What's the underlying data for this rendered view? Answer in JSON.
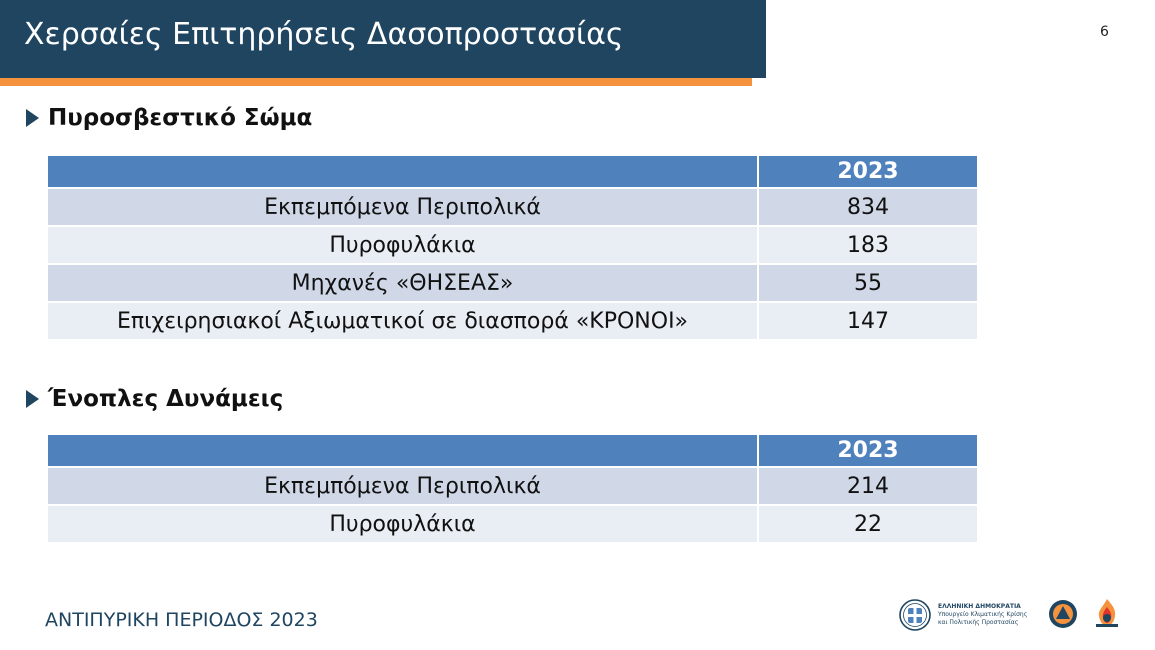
{
  "slide": {
    "title": "Χερσαίες Επιτηρήσεις Δασοπροστασίας",
    "page_number": "6",
    "footer": "ΑΝΤΙΠΥΡΙΚΗ ΠΕΡΙΟΔΟΣ 2023"
  },
  "sections": [
    {
      "heading": "Πυροσβεστικό Σώμα",
      "table": {
        "headers": [
          "",
          "2023"
        ],
        "rows": [
          [
            "Εκπεμπόμενα Περιπολικά",
            "834"
          ],
          [
            "Πυροφυλάκια",
            "183"
          ],
          [
            "Μηχανές «ΘΗΣΕΑΣ»",
            "55"
          ],
          [
            "Επιχειρησιακοί Αξιωματικοί σε διασπορά «ΚΡΟΝΟΙ»",
            "147"
          ]
        ]
      }
    },
    {
      "heading": "Ένοπλες Δυνάμεις",
      "table": {
        "headers": [
          "",
          "2023"
        ],
        "rows": [
          [
            "Εκπεμπόμενα Περιπολικά",
            "214"
          ],
          [
            "Πυροφυλάκια",
            "22"
          ]
        ]
      }
    }
  ],
  "logos": {
    "ministry_line1": "ΕΛΛΗΝΙΚΗ ΔΗΜΟΚΡΑΤΙΑ",
    "ministry_line2": "Υπουργείο Κλιματικής Κρίσης",
    "ministry_line3": "και Πολιτικής Προστασίας",
    "icons": [
      "greek-emblem-icon",
      "civil-protection-icon",
      "fire-service-icon"
    ]
  },
  "colors": {
    "title_bar": "#1f4561",
    "accent": "#f5923e",
    "table_header": "#4f81bd",
    "row_odd": "#d0d8e8",
    "row_even": "#e9edf4"
  }
}
